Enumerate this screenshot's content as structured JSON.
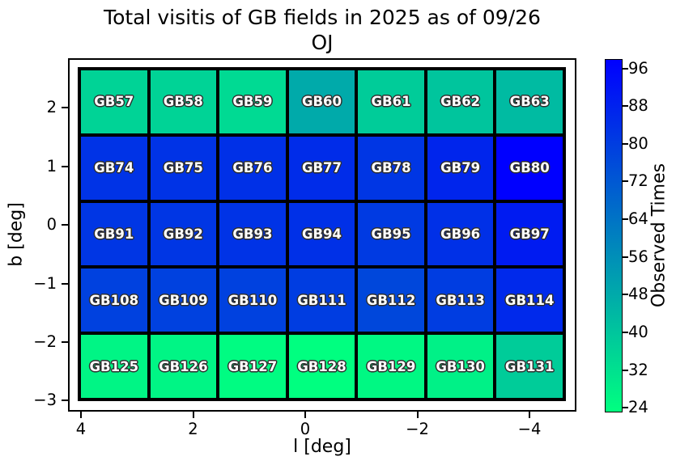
{
  "title": {
    "line1": "Total visitis of GB fields in 2025 as of 09/26",
    "line2": "OJ"
  },
  "axes": {
    "xlabel": "l [deg]",
    "ylabel": "b [deg]",
    "xticks": [
      "4",
      "2",
      "0",
      "−2",
      "−4"
    ],
    "yticks": [
      "2",
      "1",
      "0",
      "−1",
      "−2",
      "−3"
    ]
  },
  "colorbar": {
    "label": "Observed Times",
    "ticks": [
      96,
      88,
      80,
      72,
      64,
      56,
      48,
      40,
      32,
      24
    ],
    "vmin": 23,
    "vmax": 98,
    "colormap": "winter_r",
    "color_top": "#0000ff",
    "color_bottom": "#00ff80"
  },
  "chart_data": {
    "type": "heatmap",
    "title": "Total visitis of GB fields in 2025 as of 09/26 OJ",
    "xlabel": "l [deg]",
    "ylabel": "b [deg]",
    "colorbar_label": "Observed Times",
    "colormap": "winter_r",
    "vmin": 23,
    "vmax": 98,
    "xlim": [
      4.2,
      -4.8
    ],
    "ylim": [
      -3.2,
      2.85
    ],
    "columns_l": [
      3.4,
      2.15,
      0.9,
      -0.3,
      -1.55,
      -2.8,
      -4.05
    ],
    "rows_b": [
      2.1,
      0.95,
      -0.2,
      -1.35,
      -2.5
    ],
    "rows": [
      {
        "fields": [
          "GB57",
          "GB58",
          "GB59",
          "GB60",
          "GB61",
          "GB62",
          "GB63"
        ],
        "values": [
          36,
          36,
          34,
          48,
          38,
          40,
          43
        ]
      },
      {
        "fields": [
          "GB74",
          "GB75",
          "GB76",
          "GB77",
          "GB78",
          "GB79",
          "GB80"
        ],
        "values": [
          83,
          83,
          84,
          85,
          82,
          87,
          98
        ]
      },
      {
        "fields": [
          "GB91",
          "GB92",
          "GB93",
          "GB94",
          "GB95",
          "GB96",
          "GB97"
        ],
        "values": [
          82,
          82,
          83,
          84,
          81,
          84,
          90
        ]
      },
      {
        "fields": [
          "GB108",
          "GB109",
          "GB110",
          "GB111",
          "GB112",
          "GB113",
          "GB114"
        ],
        "values": [
          79,
          79,
          79,
          80,
          77,
          80,
          86
        ]
      },
      {
        "fields": [
          "GB125",
          "GB126",
          "GB127",
          "GB128",
          "GB129",
          "GB130",
          "GB131"
        ],
        "values": [
          26,
          26,
          24,
          23,
          25,
          27,
          38
        ]
      }
    ]
  }
}
